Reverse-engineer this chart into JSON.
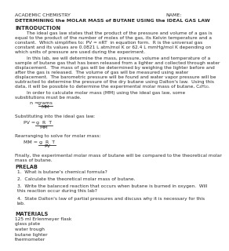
{
  "title_left": "ACADEMIC CHEMISTRY",
  "title_right": "NAME:",
  "title_bold": "DETERMINING the MOLAR MASS of BUTANE USING the IDEAL GAS LAW",
  "section_intro": "INTRODUCTION",
  "intro_p1": "        The ideal gas law states that the product of the pressure and volume of a gas is\nequal to the product of the number of moles of the gas, its Kelvin temperature and a\nconstant.  Which simplifies to: PV = nRT  in equation form.  R is the universal gas\nconstant and its values are 0.0821 L atm/mol K or 62.4 L mmHg/mol K depending on\nwhich units of pressure are used during the experiment.",
  "intro_p2": "        In this lab, we will determine the mass, pressure, volume and temperature of a\nsample of butane gas that has been released from a lighter and collected through water\ndisplacement.  The mass of gas will be determined by weighing the lighter before and\nafter the gas is released.  The volume of gas will be measured using water\ndisplacement.  The barometric pressure will be found and water vapor pressure will be\nsubtracted to determine the pressure of the dry butane using Dalton's law.  Using this\ndata, it will be possible to determine the experimental molar mass of butane, C₄H₁₀.",
  "intro_p3": "        In order to calculate molar mass (MM) using the ideal gas law, some\nsubstitutions must be made.",
  "eq1_label": "n =",
  "eq1_frac_num": "grams",
  "eq1_frac_den": "MM",
  "eq2_prefix": "Substituting into the ideal gas law:",
  "eq2_label": "PV =",
  "eq2_frac_num": "g  R  T",
  "eq2_frac_den": "MM",
  "rearrange_label": "Rearranging to solve for molar mass:",
  "eq3_label": "MM =",
  "eq3_frac_num": "g  R  T",
  "eq3_frac_den": "PV",
  "finally_text": "Finally, the experimental molar mass of butane will be compared to the theoretical molar\nmass of butane.",
  "section_prelab": "PRELAB",
  "prelab_items": [
    "What is butane's chemical formula?",
    "Calculate the theoretical molar mass of butane.",
    "Write the balanced reaction that occurs when butane is burned in oxygen.  Will\nthis reaction occur during this lab?",
    "State Dalton's law of partial pressures and discuss why it is necessary for this\nlab."
  ],
  "section_materials": "MATERIALS",
  "materials_items": [
    "125 ml Erlenmeyer flask",
    "glass plate",
    "water trough",
    "butane lighter",
    "thermometer"
  ],
  "bg_color": "#ffffff",
  "text_color": "#2b2b2b",
  "font_size": 4.5,
  "bold_font_size": 4.8
}
